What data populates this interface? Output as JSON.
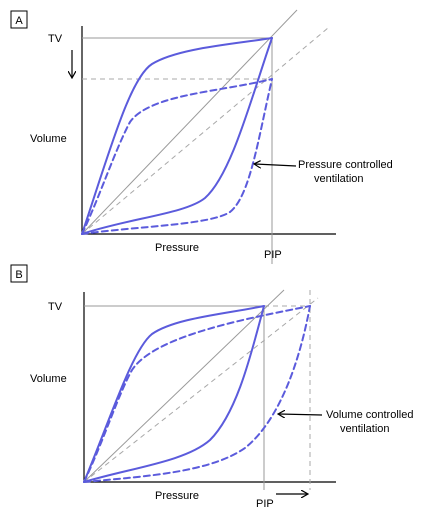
{
  "colors": {
    "loop": "#5b5bdc",
    "grid": "#9a9a9a",
    "axis": "#000000"
  },
  "panel_a": {
    "letter": "A",
    "tv_label": "TV",
    "y_axis_label": "Volume",
    "x_axis_label": "Pressure",
    "pip_label": "PIP",
    "note_line1": "Pressure controlled",
    "note_line2": "ventilation"
  },
  "panel_b": {
    "letter": "B",
    "tv_label": "TV",
    "y_axis_label": "Volume",
    "x_axis_label": "Pressure",
    "pip_label": "PIP",
    "note_line1": "Volume controlled",
    "note_line2": "ventilation"
  }
}
